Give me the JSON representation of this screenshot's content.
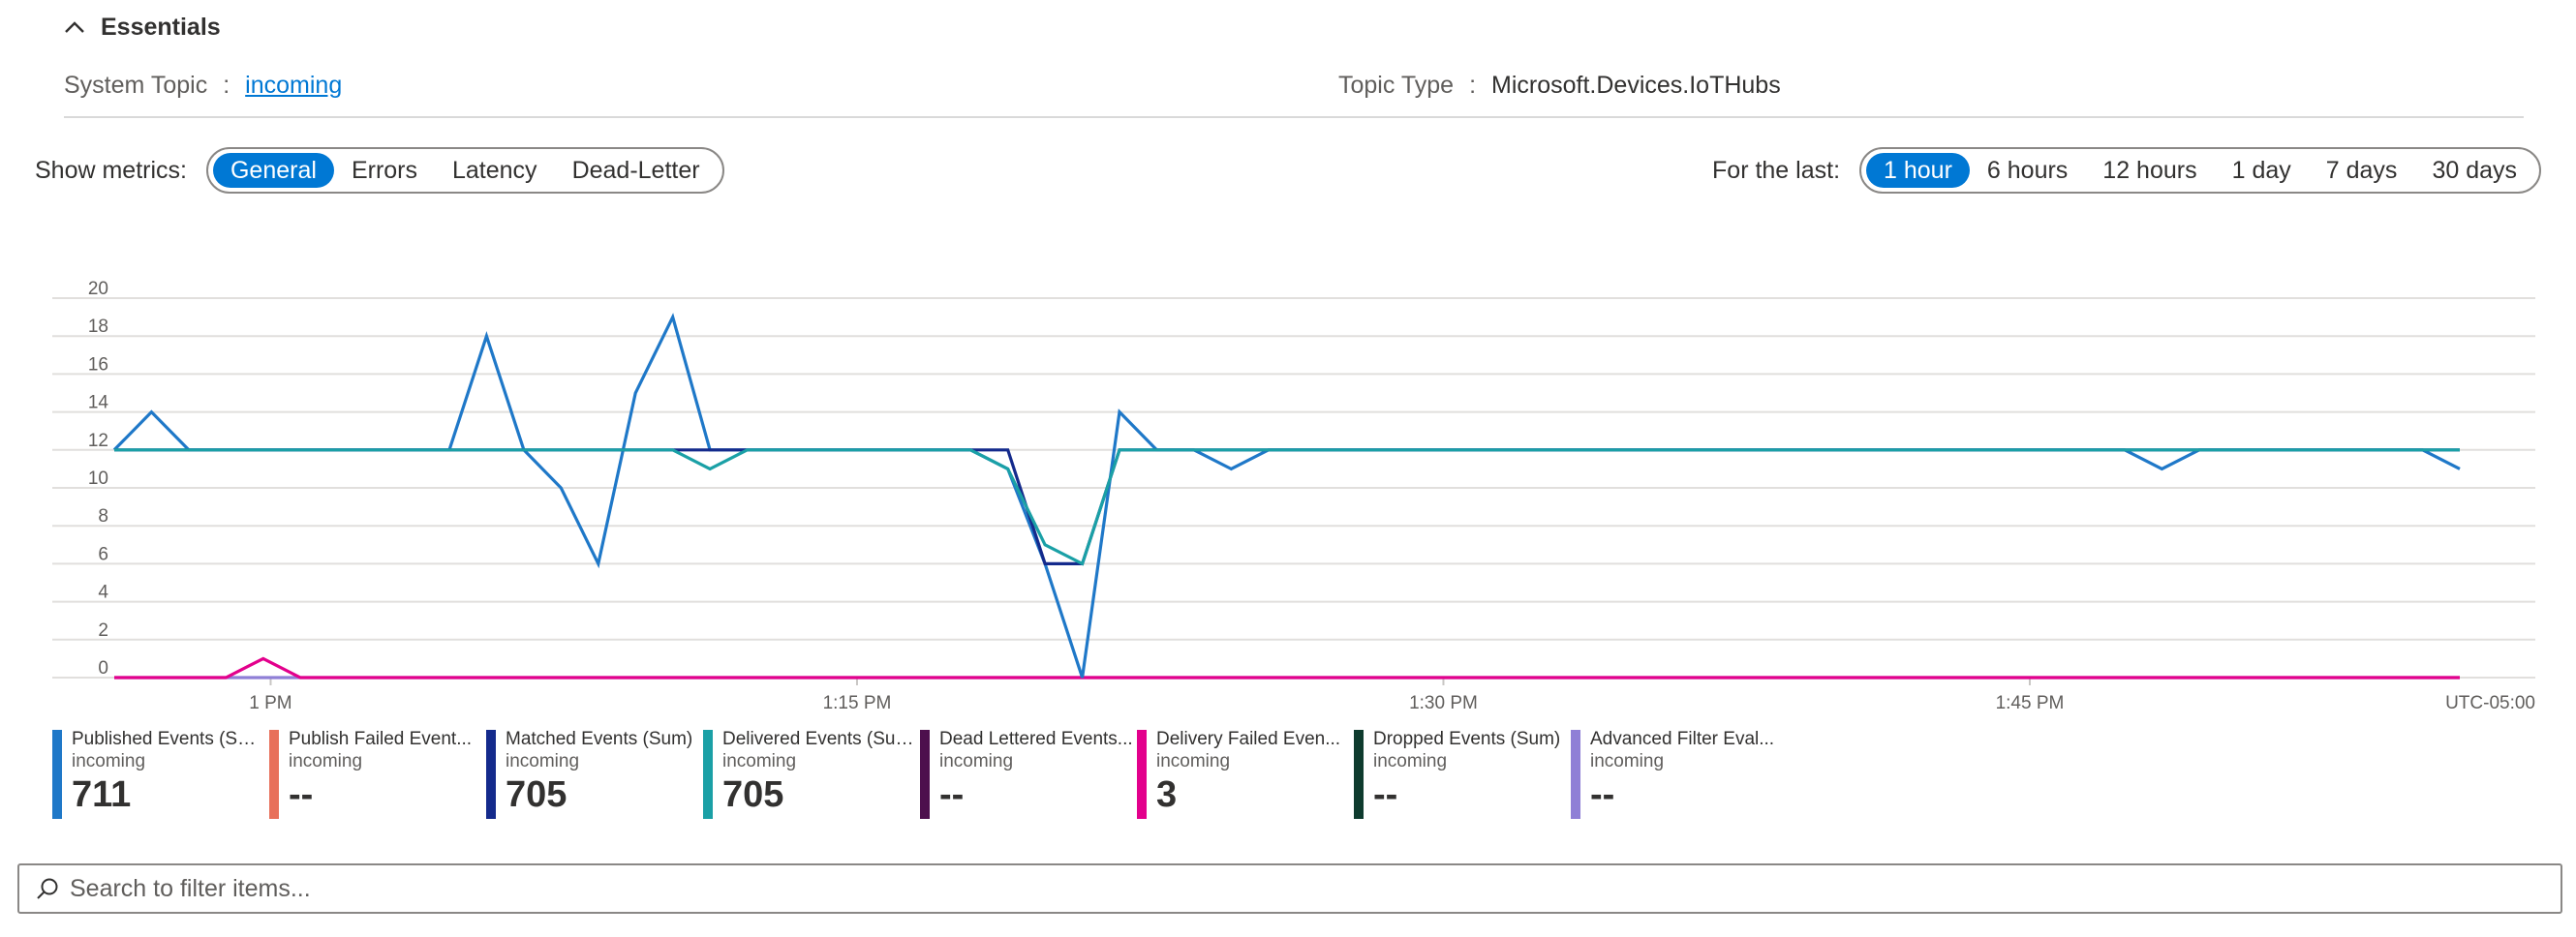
{
  "essentials": {
    "label": "Essentials"
  },
  "props": {
    "system_topic_key": "System Topic",
    "system_topic_value": "incoming",
    "topic_type_key": "Topic Type",
    "topic_type_value": "Microsoft.Devices.IoTHubs",
    "sep": ":"
  },
  "metrics": {
    "label": "Show metrics:",
    "options": [
      "General",
      "Errors",
      "Latency",
      "Dead-Letter"
    ],
    "selected": "General"
  },
  "range": {
    "label": "For the last:",
    "options": [
      "1 hour",
      "6 hours",
      "12 hours",
      "1 day",
      "7 days",
      "30 days"
    ],
    "selected": "1 hour"
  },
  "chart_data": {
    "type": "line",
    "ylim": [
      0,
      20
    ],
    "y_ticks": [
      "20",
      "18",
      "16",
      "14",
      "12",
      "10",
      "8",
      "6",
      "4",
      "2",
      "0"
    ],
    "x_ticks": [
      "1 PM",
      "1:15 PM",
      "1:30 PM",
      "1:45 PM"
    ],
    "timezone": "UTC-05:00",
    "x_start": "12:56 PM",
    "x_end": "1:56 PM",
    "grid": true,
    "series": [
      {
        "name": "Published Events (Sum)",
        "color": "#1f78c8",
        "values": [
          12,
          14,
          12,
          12,
          12,
          12,
          12,
          12,
          12,
          12,
          18,
          12,
          10,
          6,
          15,
          19,
          12,
          12,
          12,
          12,
          12,
          12,
          12,
          12,
          11,
          6,
          0,
          14,
          12,
          12,
          11,
          12,
          12,
          12,
          12,
          12,
          12,
          12,
          12,
          12,
          12,
          12,
          12,
          12,
          12,
          12,
          12,
          12,
          12,
          12,
          12,
          12,
          12,
          12,
          12,
          11,
          12,
          12,
          12,
          12,
          12,
          12,
          12,
          11
        ]
      },
      {
        "name": "Matched Events (Sum)",
        "color": "#142a8c",
        "values": [
          12,
          12,
          12,
          12,
          12,
          12,
          12,
          12,
          12,
          12,
          12,
          12,
          12,
          12,
          12,
          12,
          12,
          12,
          12,
          12,
          12,
          12,
          12,
          12,
          12,
          6,
          6,
          12,
          12,
          12,
          12,
          12,
          12,
          12,
          12,
          12,
          12,
          12,
          12,
          12,
          12,
          12,
          12,
          12,
          12,
          12,
          12,
          12,
          12,
          12,
          12,
          12,
          12,
          12,
          12,
          12,
          12,
          12,
          12,
          12,
          12,
          12,
          12,
          12
        ]
      },
      {
        "name": "Delivered Events (Sum)",
        "color": "#1aa0a6",
        "values": [
          12,
          12,
          12,
          12,
          12,
          12,
          12,
          12,
          12,
          12,
          12,
          12,
          12,
          12,
          12,
          12,
          11,
          12,
          12,
          12,
          12,
          12,
          12,
          12,
          11,
          7,
          6,
          12,
          12,
          12,
          12,
          12,
          12,
          12,
          12,
          12,
          12,
          12,
          12,
          12,
          12,
          12,
          12,
          12,
          12,
          12,
          12,
          12,
          12,
          12,
          12,
          12,
          12,
          12,
          12,
          12,
          12,
          12,
          12,
          12,
          12,
          12,
          12,
          12
        ]
      },
      {
        "name": "Delivery Failed Events (Sum)",
        "color": "#e3008c",
        "values": [
          0,
          0,
          0,
          0,
          1,
          0,
          0,
          0,
          0,
          0,
          0,
          0,
          0,
          0,
          0,
          0,
          0,
          0,
          0,
          0,
          0,
          0,
          0,
          0,
          0,
          0,
          0,
          0,
          0,
          0,
          0,
          0,
          0,
          0,
          0,
          0,
          0,
          0,
          0,
          0,
          0,
          0,
          0,
          0,
          0,
          0,
          0,
          0,
          0,
          0,
          0,
          0,
          0,
          0,
          0,
          0,
          0,
          0,
          0,
          0,
          0,
          0,
          0,
          0
        ]
      },
      {
        "name": "Advanced Filter Evaluation Failures (Sum)",
        "color": "#8f7fd6",
        "values": [
          0,
          0,
          0,
          0,
          0,
          0,
          0,
          0,
          0,
          0,
          0,
          0,
          0,
          0,
          0,
          0,
          0,
          0,
          0,
          0,
          0,
          0,
          0,
          0,
          0,
          0,
          0,
          0,
          0,
          0,
          0,
          0,
          0,
          0,
          0,
          0,
          0,
          0,
          0,
          0,
          0,
          0,
          0,
          0,
          0,
          0,
          0,
          0,
          0,
          0,
          0,
          0,
          0,
          0,
          0,
          0,
          0,
          0,
          0,
          0,
          0,
          0,
          0,
          0
        ]
      }
    ]
  },
  "legend": [
    {
      "name": "Published Events (Sum)",
      "sub": "incoming",
      "value": "711",
      "color": "#1f78c8"
    },
    {
      "name": "Publish Failed Event...",
      "sub": "incoming",
      "value": "--",
      "color": "#e8705a"
    },
    {
      "name": "Matched Events (Sum)",
      "sub": "incoming",
      "value": "705",
      "color": "#142a8c"
    },
    {
      "name": "Delivered Events (Sum)",
      "sub": "incoming",
      "value": "705",
      "color": "#1aa0a6"
    },
    {
      "name": "Dead Lettered Events...",
      "sub": "incoming",
      "value": "--",
      "color": "#4d0f4d"
    },
    {
      "name": "Delivery Failed Even...",
      "sub": "incoming",
      "value": "3",
      "color": "#e3008c"
    },
    {
      "name": "Dropped Events (Sum)",
      "sub": "incoming",
      "value": "--",
      "color": "#0e3b2e"
    },
    {
      "name": "Advanced Filter Eval...",
      "sub": "incoming",
      "value": "--",
      "color": "#8f7fd6"
    }
  ],
  "search": {
    "placeholder": "Search to filter items..."
  }
}
